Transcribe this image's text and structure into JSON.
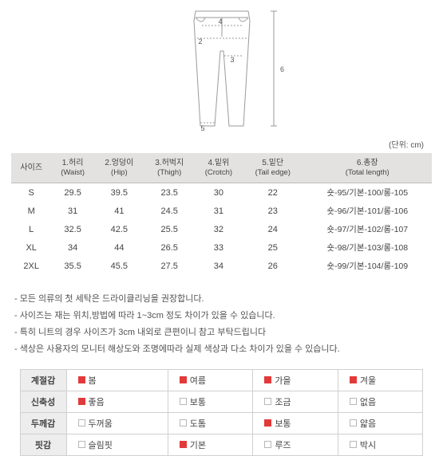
{
  "unit_label": "(단위: cm)",
  "diagram": {
    "labels": {
      "n2": "2",
      "n3": "3",
      "n4": "4",
      "n5": "5",
      "n6": "6"
    },
    "stroke": "#9a9a9a",
    "label_color": "#555555"
  },
  "size_table": {
    "header_bg": "#e3e2e0",
    "columns": [
      {
        "ko": "사이즈",
        "en": ""
      },
      {
        "ko": "1.허리",
        "en": "(Waist)"
      },
      {
        "ko": "2.엉덩이",
        "en": "(Hip)"
      },
      {
        "ko": "3.허벅지",
        "en": "(Thigh)"
      },
      {
        "ko": "4.밑위",
        "en": "(Crotch)"
      },
      {
        "ko": "5.밑단",
        "en": "(Tail edge)"
      },
      {
        "ko": "6.총장",
        "en": "(Total length)"
      }
    ],
    "rows": [
      {
        "size": "S",
        "v": [
          "29.5",
          "39.5",
          "23.5",
          "30",
          "22",
          "숏-95/기본-100/롱-105"
        ]
      },
      {
        "size": "M",
        "v": [
          "31",
          "41",
          "24.5",
          "31",
          "23",
          "숏-96/기본-101/롱-106"
        ]
      },
      {
        "size": "L",
        "v": [
          "32.5",
          "42.5",
          "25.5",
          "32",
          "24",
          "숏-97/기본-102/롱-107"
        ]
      },
      {
        "size": "XL",
        "v": [
          "34",
          "44",
          "26.5",
          "33",
          "25",
          "숏-98/기본-103/롱-108"
        ]
      },
      {
        "size": "2XL",
        "v": [
          "35.5",
          "45.5",
          "27.5",
          "34",
          "26",
          "숏-99/기본-104/롱-109"
        ]
      }
    ]
  },
  "notes": [
    "- 모든 의류의 첫 세탁은 드라이클리닝을 권장합니다.",
    "- 사이즈는 재는 위치,방법에 따라 1~3cm 정도 차이가 있을 수 있습니다.",
    "- 특히 니트의 경우 사이즈가 3cm 내외로 큰편이니 참고 부탁드립니다",
    "- 색상은 사용자의 모니터 해상도와 조명에따라 실제 색상과 다소 차이가 있을 수 있습니다."
  ],
  "attributes": {
    "checked_color": "#e23a3a",
    "rows": [
      {
        "label": "계절감",
        "options": [
          {
            "text": "봄",
            "checked": true
          },
          {
            "text": "여름",
            "checked": true
          },
          {
            "text": "가을",
            "checked": true
          },
          {
            "text": "겨울",
            "checked": true
          }
        ]
      },
      {
        "label": "신축성",
        "options": [
          {
            "text": "좋음",
            "checked": true
          },
          {
            "text": "보통",
            "checked": false
          },
          {
            "text": "조금",
            "checked": false
          },
          {
            "text": "없음",
            "checked": false
          }
        ]
      },
      {
        "label": "두께감",
        "options": [
          {
            "text": "두꺼움",
            "checked": false
          },
          {
            "text": "도톰",
            "checked": false
          },
          {
            "text": "보통",
            "checked": true
          },
          {
            "text": "얇음",
            "checked": false
          }
        ]
      },
      {
        "label": "핏감",
        "options": [
          {
            "text": "슬림핏",
            "checked": false
          },
          {
            "text": "기본",
            "checked": true
          },
          {
            "text": "루즈",
            "checked": false
          },
          {
            "text": "박시",
            "checked": false
          }
        ]
      }
    ]
  }
}
